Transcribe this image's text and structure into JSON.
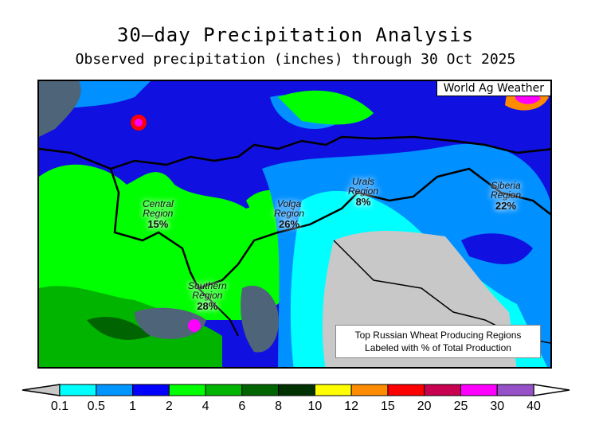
{
  "title": "30—day Precipitation Analysis",
  "subtitle": "Observed precipitation (inches) through 30 Oct 2025",
  "credit": "World Ag Weather",
  "regions": [
    {
      "name_line1": "Central",
      "name_line2": "Region",
      "percent": "15%"
    },
    {
      "name_line1": "Volga",
      "name_line2": "Region",
      "percent": "26%"
    },
    {
      "name_line1": "Urals",
      "name_line2": "Region",
      "percent": "8%"
    },
    {
      "name_line1": "Siberia",
      "name_line2": "Region",
      "percent": "22%"
    },
    {
      "name_line1": "Southern",
      "name_line2": "Region",
      "percent": "28%"
    }
  ],
  "note": {
    "line1": "Top Russian Wheat Producing Regions",
    "line2": "Labeled with % of Total Production"
  },
  "legend": {
    "unit": "inches",
    "labels": [
      "0.1",
      "0.5",
      "1",
      "2",
      "4",
      "6",
      "8",
      "10",
      "12",
      "15",
      "20",
      "25",
      "30",
      "40"
    ],
    "colors": [
      "#00ffff",
      "#0096ff",
      "#0000ff",
      "#00ff00",
      "#00b400",
      "#006400",
      "#003200",
      "#ffff00",
      "#ff8c00",
      "#ff0000",
      "#c80050",
      "#ff00ff",
      "#9650c8"
    ],
    "under_color": "#c8c8c8",
    "over_color": "#ffffff"
  }
}
